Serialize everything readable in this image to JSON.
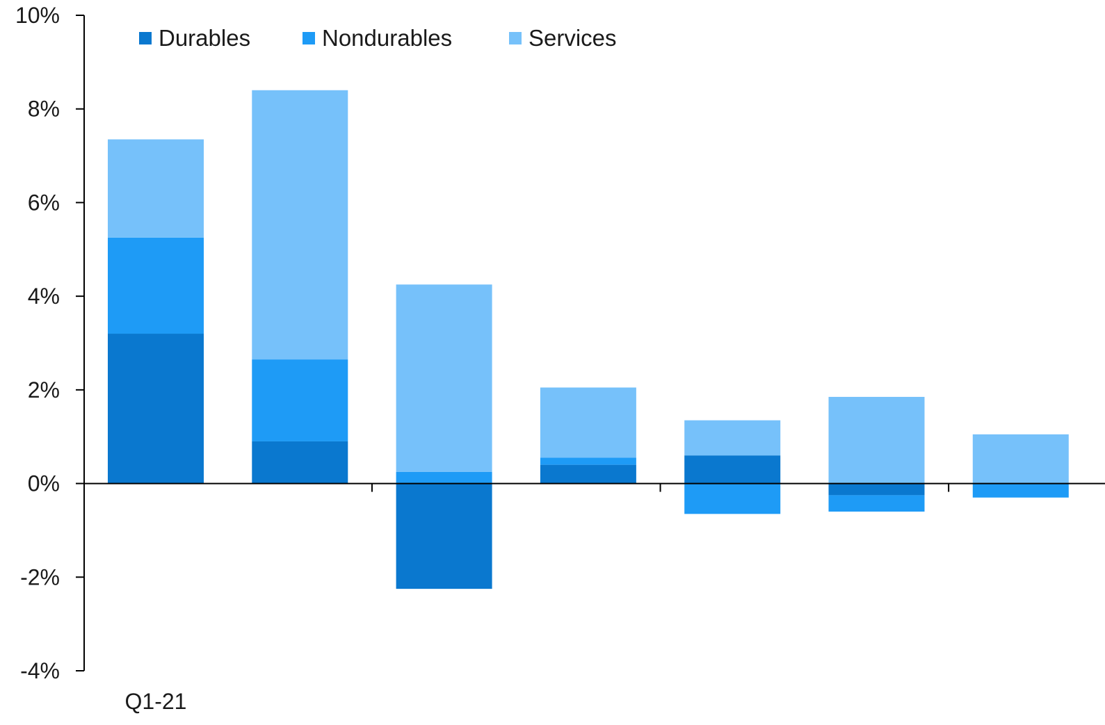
{
  "chart_data": {
    "type": "bar",
    "stacked": true,
    "categories": [
      "Q1-21",
      "",
      "",
      "",
      "",
      "",
      ""
    ],
    "series": [
      {
        "name": "Durables",
        "color": "#0A78CF",
        "values": [
          3.2,
          0.9,
          -2.25,
          0.4,
          0.6,
          -0.25,
          0.0
        ]
      },
      {
        "name": "Nondurables",
        "color": "#1E9BF6",
        "values": [
          2.05,
          1.75,
          0.25,
          0.15,
          -0.65,
          -0.35,
          -0.3
        ]
      },
      {
        "name": "Services",
        "color": "#76C1FA",
        "values": [
          2.1,
          5.75,
          4.0,
          1.5,
          0.75,
          1.85,
          1.05
        ]
      }
    ],
    "title": "",
    "xlabel": "",
    "ylabel": "",
    "ylim": [
      -4,
      10
    ],
    "yticks": [
      -4,
      -2,
      0,
      2,
      4,
      6,
      8,
      10
    ],
    "ytick_labels": [
      "-4%",
      "-2%",
      "0%",
      "2%",
      "4%",
      "6%",
      "8%",
      "10%"
    ],
    "grid": false,
    "legend_position": "top-left"
  }
}
